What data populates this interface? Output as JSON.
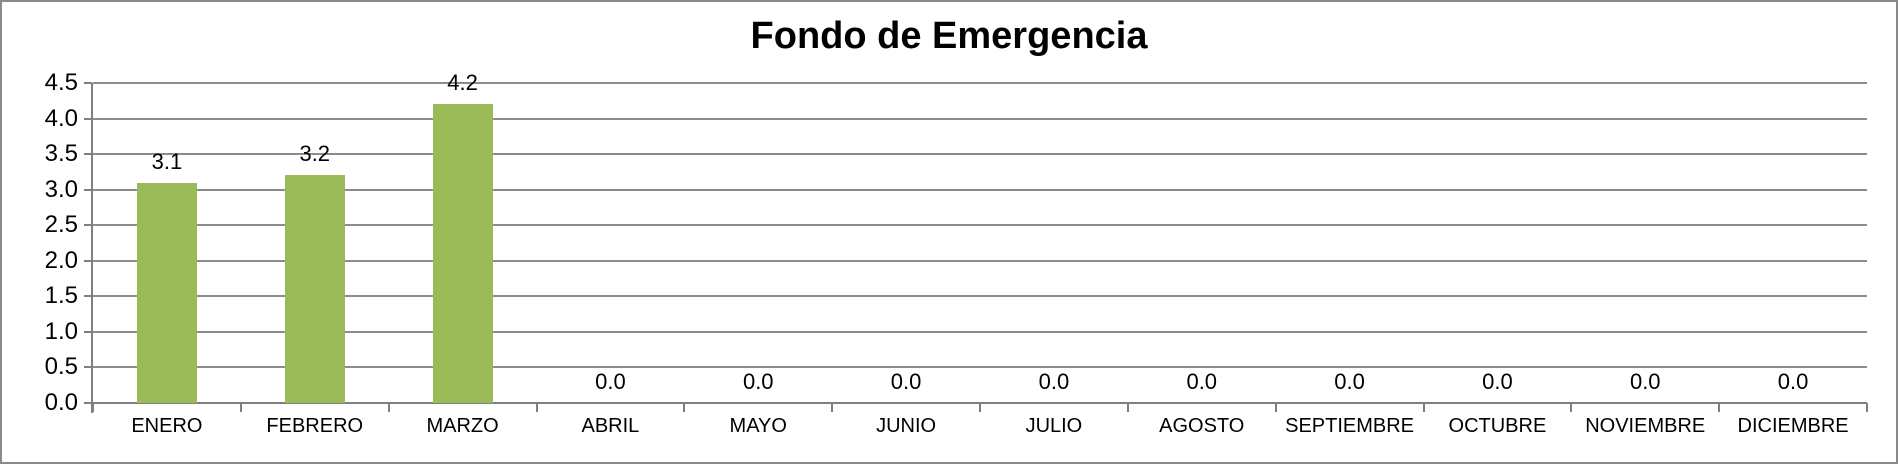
{
  "chart_data": {
    "type": "bar",
    "title": "Fondo de Emergencia",
    "categories": [
      "ENERO",
      "FEBRERO",
      "MARZO",
      "ABRIL",
      "MAYO",
      "JUNIO",
      "JULIO",
      "AGOSTO",
      "SEPTIEMBRE",
      "OCTUBRE",
      "NOVIEMBRE",
      "DICIEMBRE"
    ],
    "values": [
      3.1,
      3.2,
      4.2,
      0.0,
      0.0,
      0.0,
      0.0,
      0.0,
      0.0,
      0.0,
      0.0,
      0.0
    ],
    "data_labels": [
      "3.1",
      "3.2",
      "4.2",
      "0.0",
      "0.0",
      "0.0",
      "0.0",
      "0.0",
      "0.0",
      "0.0",
      "0.0",
      "0.0"
    ],
    "xlabel": "",
    "ylabel": "",
    "ylim": [
      0,
      4.5
    ],
    "ytick_step": 0.5,
    "ytick_labels": [
      "4.5",
      "4.0",
      "3.5",
      "3.0",
      "2.5",
      "2.0",
      "1.5",
      "1.0",
      "0.5",
      "0.0"
    ],
    "grid": true,
    "legend": false,
    "colors": {
      "bar_fill": "#9BBB59",
      "gridline": "#8C8C8C",
      "axis_line": "#7F7F7F",
      "chart_border": "#8A8A8A",
      "background": "#FFFFFF",
      "text": "#000000"
    }
  }
}
